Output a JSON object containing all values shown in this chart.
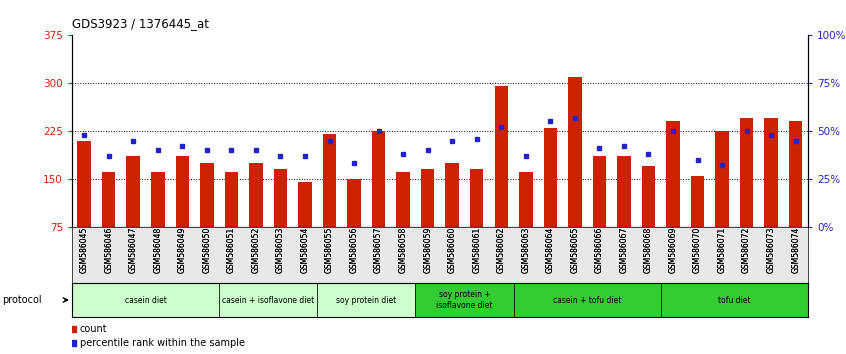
{
  "title": "GDS3923 / 1376445_at",
  "samples": [
    "GSM586045",
    "GSM586046",
    "GSM586047",
    "GSM586048",
    "GSM586049",
    "GSM586050",
    "GSM586051",
    "GSM586052",
    "GSM586053",
    "GSM586054",
    "GSM586055",
    "GSM586056",
    "GSM586057",
    "GSM586058",
    "GSM586059",
    "GSM586060",
    "GSM586061",
    "GSM586062",
    "GSM586063",
    "GSM586064",
    "GSM586065",
    "GSM586066",
    "GSM586067",
    "GSM586068",
    "GSM586069",
    "GSM586070",
    "GSM586071",
    "GSM586072",
    "GSM586073",
    "GSM586074"
  ],
  "count_values": [
    210,
    160,
    185,
    160,
    185,
    175,
    160,
    175,
    165,
    145,
    220,
    150,
    225,
    160,
    165,
    175,
    165,
    295,
    160,
    230,
    310,
    185,
    185,
    170,
    240,
    155,
    225,
    245,
    245,
    240
  ],
  "percentile_values": [
    48,
    37,
    45,
    40,
    42,
    40,
    40,
    40,
    37,
    37,
    45,
    33,
    50,
    38,
    40,
    45,
    46,
    52,
    37,
    55,
    57,
    41,
    42,
    38,
    50,
    35,
    32,
    50,
    48,
    45
  ],
  "y_min": 75,
  "y_max": 375,
  "y_ticks_left": [
    75,
    150,
    225,
    300,
    375
  ],
  "y_ticks_right_vals": [
    0,
    25,
    50,
    75,
    100
  ],
  "y_ticks_right_labels": [
    "0%",
    "25%",
    "50%",
    "75%",
    "100%"
  ],
  "bar_color": "#CC2200",
  "dot_color": "#2222CC",
  "protocols": [
    {
      "label": "casein diet",
      "start": 0,
      "end": 5,
      "color": "#ccffcc"
    },
    {
      "label": "casein + isoflavone diet",
      "start": 6,
      "end": 9,
      "color": "#ccffcc"
    },
    {
      "label": "soy protein diet",
      "start": 10,
      "end": 13,
      "color": "#ccffcc"
    },
    {
      "label": "soy protein +\nisoflavone diet",
      "start": 14,
      "end": 17,
      "color": "#33cc33"
    },
    {
      "label": "casein + tofu diet",
      "start": 18,
      "end": 23,
      "color": "#33cc33"
    },
    {
      "label": "tofu diet",
      "start": 24,
      "end": 29,
      "color": "#33cc33"
    }
  ],
  "legend_count_label": "count",
  "legend_percentile_label": "percentile rank within the sample",
  "protocol_label": "protocol",
  "tick_label_color_left": "#CC2200",
  "tick_label_color_right": "#2222CC"
}
